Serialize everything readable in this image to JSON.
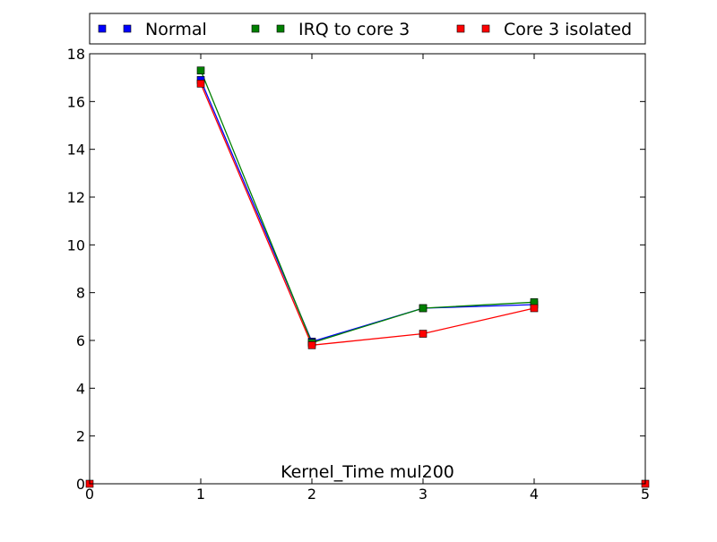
{
  "chart_data": {
    "type": "line",
    "title": "Kernel_Time mul200",
    "xlabel": "",
    "ylabel": "",
    "xlim": [
      0,
      5
    ],
    "ylim": [
      0,
      18
    ],
    "xticks": [
      0,
      1,
      2,
      3,
      4,
      5
    ],
    "yticks": [
      0,
      2,
      4,
      6,
      8,
      10,
      12,
      14,
      16,
      18
    ],
    "grid": false,
    "legend_position": "top-outside",
    "x": [
      1,
      2,
      3,
      4
    ],
    "series": [
      {
        "name": "Normal",
        "color": "#0000ff",
        "values": [
          16.9,
          5.95,
          7.35,
          7.5
        ]
      },
      {
        "name": "IRQ to core 3",
        "color": "#008000",
        "values": [
          17.3,
          5.9,
          7.35,
          7.6
        ]
      },
      {
        "name": "Core 3 isolated",
        "color": "#ff0000",
        "values": [
          16.75,
          5.8,
          6.28,
          7.35
        ]
      }
    ],
    "extra_markers": [
      {
        "series": "Core 3 isolated",
        "x": 0,
        "y": 0
      },
      {
        "series": "Core 3 isolated",
        "x": 5,
        "y": 0
      }
    ]
  }
}
